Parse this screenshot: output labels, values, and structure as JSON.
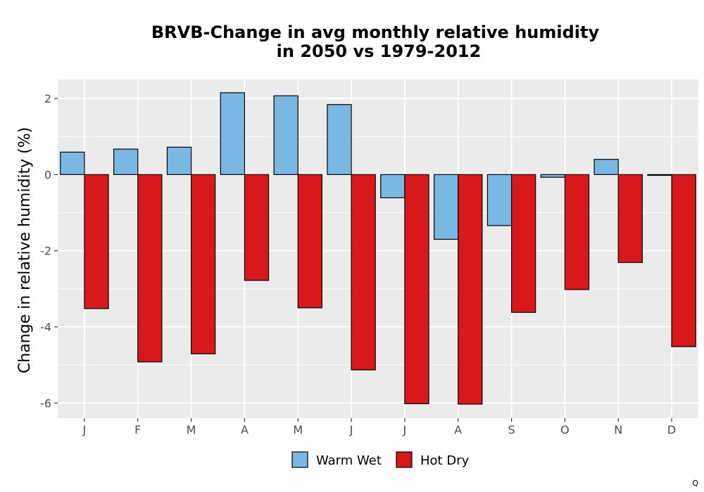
{
  "chart_data": {
    "type": "bar",
    "title_lines": [
      "BRVB-Change in avg monthly relative humidity",
      "in 2050 vs 1979-2012"
    ],
    "xlabel": "",
    "ylabel": "Change in relative humidity (%)",
    "categories": [
      "J",
      "F",
      "M",
      "A",
      "M",
      "J",
      "J",
      "A",
      "S",
      "O",
      "N",
      "D"
    ],
    "series": [
      {
        "name": "Warm Wet",
        "color": "#78B8E3",
        "values": [
          0.59,
          0.67,
          0.72,
          2.15,
          2.07,
          1.84,
          -0.61,
          -1.7,
          -1.34,
          -0.07,
          0.4,
          -0.02
        ]
      },
      {
        "name": "Hot Dry",
        "color": "#D7191C",
        "values": [
          -3.52,
          -4.92,
          -4.71,
          -2.78,
          -3.5,
          -5.13,
          -6.02,
          -6.03,
          -3.62,
          -3.02,
          -2.31,
          -4.52
        ]
      }
    ],
    "ylim": [
      -6.4,
      2.5
    ],
    "yticks": [
      2,
      0,
      -2,
      -4,
      -6
    ],
    "ytick_labels": [
      "2",
      "0",
      "-2",
      "-4",
      "-6"
    ],
    "grid": true,
    "legend_position": "bottom",
    "panel_color": "#EBEBEB",
    "bar_outline_color": "#000000"
  },
  "corner_mark": "Q"
}
